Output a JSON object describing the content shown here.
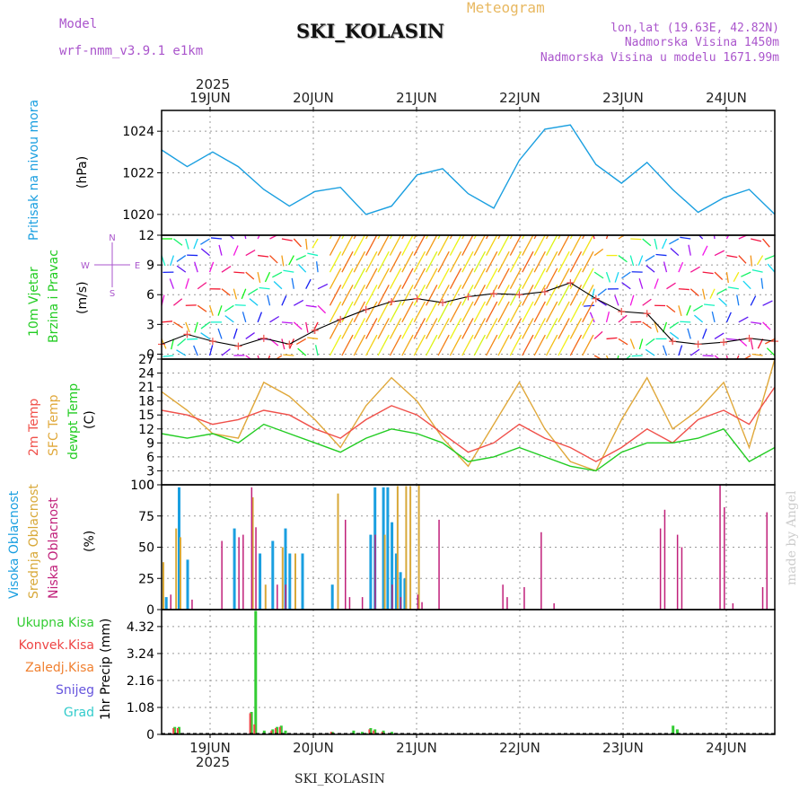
{
  "header": {
    "model_label": "Model",
    "model_name": "wrf-nmm_v3.9.1 e1km",
    "title": "SKI_KOLASIN",
    "subtitle": "Meteogram",
    "lonlat": "lon,lat (19.63E, 42.82N)",
    "altitude": "Nadmorska Visina 1450m",
    "model_altitude": "Nadmorska Visina u modelu 1671.99m"
  },
  "footer": {
    "station": "SKI_KOLASIN",
    "credit": "made by Angel"
  },
  "colors": {
    "pressure": "#1a9fe0",
    "t2m": "#f0504a",
    "sfc": "#e0a83a",
    "dewpt": "#22cc22",
    "high_cloud": "#1a9fe0",
    "mid_cloud": "#d8a838",
    "low_cloud": "#c0207a",
    "total_precip": "#33cc33",
    "conv_precip": "#ee4444",
    "freezing": "#f08030",
    "snow": "#6655dd",
    "hail": "#33cccc",
    "compass": "#aa55cc"
  },
  "chart_data": [
    {
      "type": "line",
      "id": "pressure",
      "ylabel": "(hPa)",
      "side_label": "Pritisak na nivou mora",
      "ylim": [
        1019,
        1025
      ],
      "yticks": [
        1020,
        1022,
        1024
      ],
      "x_range": [
        "2025-06-18T14:00",
        "2025-06-24T14:00"
      ],
      "x_ticks": [
        "19JUN",
        "20JUN",
        "21JUN",
        "22JUN",
        "23JUN",
        "24JUN"
      ],
      "year": "2025",
      "series": [
        {
          "x": [
            0,
            6,
            12,
            18,
            24,
            30,
            36,
            42,
            48,
            54,
            60,
            66,
            72,
            78,
            84,
            90,
            96,
            102,
            108,
            114,
            120,
            126,
            132,
            138,
            144
          ],
          "y": [
            1023.1,
            1022.3,
            1023.0,
            1022.3,
            1021.2,
            1020.4,
            1021.1,
            1021.3,
            1020.0,
            1020.4,
            1021.9,
            1022.2,
            1021.0,
            1020.3,
            1022.6,
            1024.1,
            1024.3,
            1022.4,
            1021.5,
            1022.5,
            1021.2,
            1020.1,
            1020.8,
            1021.2,
            1020.0
          ]
        }
      ]
    },
    {
      "type": "line",
      "id": "wind",
      "ylabel": "(m/s)",
      "side_label": [
        "10m Vjetar",
        "Brzina i Pravac"
      ],
      "compass": {
        "n": "N",
        "s": "S",
        "e": "E",
        "w": "W"
      },
      "ylim": [
        -0.5,
        12
      ],
      "yticks": [
        0,
        3,
        6,
        9,
        12
      ],
      "series": [
        {
          "name": "speed",
          "x": [
            0,
            6,
            12,
            18,
            24,
            30,
            36,
            42,
            48,
            54,
            60,
            66,
            72,
            78,
            84,
            90,
            96,
            102,
            108,
            114,
            120,
            126,
            132,
            138,
            144
          ],
          "y": [
            1.0,
            2.0,
            1.3,
            0.8,
            1.6,
            1.0,
            2.4,
            3.5,
            4.5,
            5.3,
            5.6,
            5.2,
            5.8,
            6.1,
            6.0,
            6.3,
            7.2,
            5.6,
            4.3,
            4.1,
            1.3,
            1.0,
            1.2,
            1.6,
            1.3
          ]
        }
      ]
    },
    {
      "type": "line",
      "id": "temperature",
      "ylabel": "(C)",
      "side_label": [
        "2m Temp",
        "SFC Temp",
        "dewpt Temp"
      ],
      "ylim": [
        0,
        27
      ],
      "yticks": [
        0,
        3,
        6,
        9,
        12,
        15,
        18,
        21,
        24,
        27
      ],
      "series": [
        {
          "name": "2m Temp",
          "x": [
            0,
            6,
            12,
            18,
            24,
            30,
            36,
            42,
            48,
            54,
            60,
            66,
            72,
            78,
            84,
            90,
            96,
            102,
            108,
            114,
            120,
            126,
            132,
            138,
            144
          ],
          "y": [
            16,
            15,
            13,
            14,
            16,
            15,
            12,
            10,
            14,
            17,
            15,
            11,
            7,
            9,
            13,
            10,
            8,
            5,
            8,
            12,
            9,
            14,
            16,
            13,
            21
          ]
        },
        {
          "name": "SFC Temp",
          "x": [
            0,
            6,
            12,
            18,
            24,
            30,
            36,
            42,
            48,
            54,
            60,
            66,
            72,
            78,
            84,
            90,
            96,
            102,
            108,
            114,
            120,
            126,
            132,
            138,
            144
          ],
          "y": [
            20,
            16,
            11,
            10,
            22,
            19,
            14,
            8,
            17,
            23,
            18,
            10,
            4,
            13,
            22,
            12,
            5,
            3,
            14,
            23,
            12,
            16,
            22,
            8,
            27
          ]
        },
        {
          "name": "dewpt Temp",
          "x": [
            0,
            6,
            12,
            18,
            24,
            30,
            36,
            42,
            48,
            54,
            60,
            66,
            72,
            78,
            84,
            90,
            96,
            102,
            108,
            114,
            120,
            126,
            132,
            138,
            144
          ],
          "y": [
            11,
            10,
            11,
            9,
            13,
            11,
            9,
            7,
            10,
            12,
            11,
            9,
            5,
            6,
            8,
            6,
            4,
            3,
            7,
            9,
            9,
            10,
            12,
            5,
            8
          ]
        }
      ]
    },
    {
      "type": "bar",
      "id": "clouds",
      "ylabel": "(%)",
      "side_label": [
        "Visoka Oblacnost",
        "Srednja Oblacnost",
        "Niska Oblacnost"
      ],
      "ylim": [
        0,
        100
      ],
      "yticks": [
        0,
        25,
        50,
        75,
        100
      ],
      "series": [
        {
          "name": "Visoka Oblacnost",
          "x": [
            1,
            4,
            6,
            17,
            23,
            26,
            29,
            30,
            33,
            40,
            49,
            50,
            52,
            53,
            54,
            55,
            56,
            57
          ],
          "y": [
            10,
            98,
            40,
            65,
            45,
            55,
            65,
            45,
            45,
            20,
            60,
            98,
            98,
            98,
            70,
            45,
            30,
            25
          ]
        },
        {
          "name": "Srednja Oblacnost",
          "x": [
            0,
            3,
            4,
            21,
            24,
            28,
            31,
            41,
            52,
            55,
            57,
            58,
            60
          ],
          "y": [
            38,
            65,
            58,
            90,
            20,
            50,
            45,
            93,
            60,
            99,
            99,
            99,
            100
          ]
        },
        {
          "name": "Niska Oblacnost",
          "x": [
            2,
            7,
            14,
            18,
            19,
            21,
            22,
            27,
            29,
            43,
            44,
            47,
            50,
            54,
            56,
            60,
            61,
            65,
            80,
            81,
            85,
            89,
            92,
            117,
            118,
            121,
            122,
            131,
            132,
            134,
            141,
            142
          ],
          "y": [
            12,
            8,
            55,
            58,
            60,
            98,
            66,
            20,
            20,
            72,
            10,
            10,
            60,
            20,
            10,
            12,
            6,
            72,
            20,
            10,
            18,
            62,
            5,
            65,
            80,
            60,
            50,
            100,
            82,
            5,
            18,
            78
          ]
        }
      ]
    },
    {
      "type": "bar",
      "id": "precip",
      "ylabel": "1hr Precip (mm)",
      "legend": [
        "Ukupna Kisa",
        "Konvek.Kisa",
        "Zaledj.Kisa",
        "Snijeg",
        "Grad"
      ],
      "ylim": [
        0,
        5.0
      ],
      "yticks": [
        0,
        1.08,
        2.16,
        3.24,
        4.32
      ],
      "series": [
        {
          "name": "Ukupna Kisa",
          "x": [
            3,
            4,
            21,
            22,
            24,
            26,
            27,
            28,
            29,
            40,
            45,
            47,
            48,
            49,
            50,
            52,
            54,
            55,
            120,
            121
          ],
          "y": [
            0.3,
            0.3,
            0.9,
            4.95,
            0.15,
            0.2,
            0.3,
            0.35,
            0.15,
            0.1,
            0.15,
            0.1,
            0.05,
            0.25,
            0.2,
            0.15,
            0.1,
            0.05,
            0.35,
            0.2
          ]
        },
        {
          "name": "Konvek.Kisa",
          "x": [
            3,
            4,
            21,
            22,
            26,
            27,
            28,
            40,
            49,
            50,
            52,
            120
          ],
          "y": [
            0.25,
            0.25,
            0.85,
            0.4,
            0.15,
            0.25,
            0.3,
            0.1,
            0.2,
            0.15,
            0.1,
            0.05
          ]
        }
      ]
    }
  ]
}
